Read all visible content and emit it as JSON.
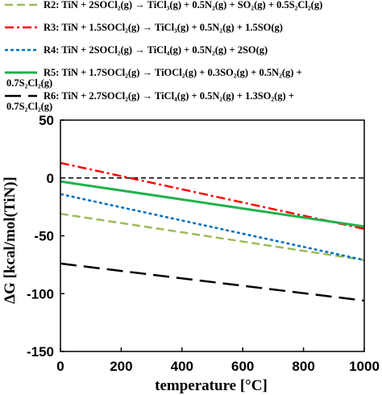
{
  "chart_data": {
    "type": "line",
    "xlabel": "temperature [°C]",
    "ylabel": "ΔG [kcal/mol(TiN)]",
    "xlim": [
      0,
      1000
    ],
    "ylim": [
      -150,
      50
    ],
    "xticks": [
      0,
      200,
      400,
      600,
      800,
      1000
    ],
    "yticks": [
      50,
      0,
      -50,
      -100,
      -150
    ],
    "grid": false,
    "legend_position": "top",
    "series": [
      {
        "name": "R2: TiN + 2SOCl₂(g) → TiCl₃(g) + 0.5N₂(g) + SO₂(g) + 0.5S₂Cl₂(g)",
        "color": "#9bbb59",
        "dash": "dashed",
        "x": [
          0,
          1000
        ],
        "y": [
          -31,
          -71
        ]
      },
      {
        "name": "R3: TiN + 1.5SOCl₂(g) → TiCl₃(g) + 0.5N₂(g) + 1.5SO(g)",
        "color": "#ff0000",
        "dash": "dash-dot",
        "x": [
          0,
          1000
        ],
        "y": [
          13,
          -44
        ]
      },
      {
        "name": "R4: TiN + 2SOCl₂(g) → TiCl₄(g) + 0.5N₂(g) + 2SO(g)",
        "color": "#0070c0",
        "dash": "dotted",
        "x": [
          0,
          1000
        ],
        "y": [
          -14,
          -71
        ]
      },
      {
        "name": "R5: TiN + 1.7SOCl₂(g) → TiOCl₂(g) + 0.3SO₂(g) + 0.5N₂(g) + 0.7S₂Cl₂(g)",
        "color": "#22b14c",
        "dash": "solid",
        "x": [
          0,
          1000
        ],
        "y": [
          -3,
          -42
        ]
      },
      {
        "name": "R6: TiN + 2.7SOCl₂(g) → TiCl₄(g) + 0.5N₂(g) + 1.3SO₂(g) + 0.7S₂Cl₂(g)",
        "color": "#000000",
        "dash": "long-dash",
        "x": [
          0,
          1000
        ],
        "y": [
          -74,
          -106
        ]
      }
    ],
    "reference_line": {
      "y": 0,
      "color": "#000000",
      "dash": "short-dash"
    }
  },
  "legend": [
    {
      "lines": [
        "R2: TiN + 2SOCl₂(g) → TiCl₃(g) + 0.5N₂(g) + SO₂(g) + 0.5S₂Cl₂(g)"
      ]
    },
    {
      "lines": [
        "R3: TiN + 1.5SOCl₂(g) → TiCl₃(g) + 0.5N₂(g) + 1.5SO(g)"
      ]
    },
    {
      "lines": [
        "R4: TiN + 2SOCl₂(g) → TiCl₄(g) + 0.5N₂(g) + 2SO(g)"
      ]
    },
    {
      "lines": [
        "R5: TiN + 1.7SOCl₂(g) → TiOCl₂(g) + 0.3SO₂(g) + 0.5N₂(g) +",
        "0.7S₂Cl₂(g)"
      ]
    },
    {
      "lines": [
        "R6: TiN + 2.7SOCl₂(g) → TiCl₄(g) + 0.5N₂(g) + 1.3SO₂(g) +",
        "0.7S₂Cl₂(g)"
      ]
    }
  ]
}
